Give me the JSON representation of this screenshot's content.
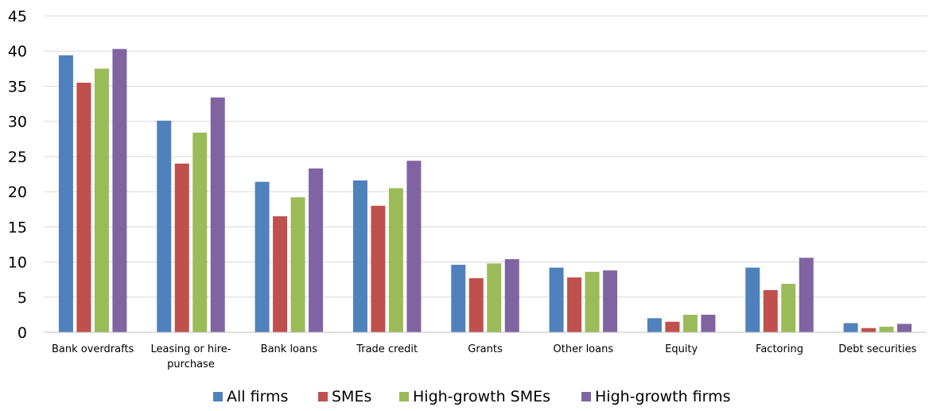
{
  "chart_data": {
    "type": "bar",
    "title": "",
    "xlabel": "",
    "ylabel": "",
    "ylim": [
      0,
      45
    ],
    "yticks": [
      0,
      5,
      10,
      15,
      20,
      25,
      30,
      35,
      40,
      45
    ],
    "grid": "horizontal",
    "legend_position": "bottom",
    "categories": [
      [
        "Bank overdrafts"
      ],
      [
        "Leasing or hire-",
        "purchase"
      ],
      [
        "Bank loans"
      ],
      [
        "Trade credit"
      ],
      [
        "Grants"
      ],
      [
        "Other loans"
      ],
      [
        "Equity"
      ],
      [
        "Factoring"
      ],
      [
        "Debt securities"
      ]
    ],
    "series": [
      {
        "name": "All firms",
        "color": "#4F81BD",
        "values": [
          39.4,
          30.1,
          21.4,
          21.6,
          9.6,
          9.2,
          2.0,
          9.2,
          1.3
        ]
      },
      {
        "name": "SMEs",
        "color": "#C0504D",
        "values": [
          35.5,
          24.0,
          16.5,
          18.0,
          7.7,
          7.8,
          1.5,
          6.0,
          0.6
        ]
      },
      {
        "name": "High-growth SMEs",
        "color": "#9BBB59",
        "values": [
          37.5,
          28.4,
          19.2,
          20.5,
          9.8,
          8.6,
          2.5,
          6.9,
          0.8
        ]
      },
      {
        "name": "High-growth firms",
        "color": "#8064A2",
        "values": [
          40.3,
          33.4,
          23.3,
          24.4,
          10.4,
          8.8,
          2.5,
          10.6,
          1.2
        ]
      }
    ]
  }
}
